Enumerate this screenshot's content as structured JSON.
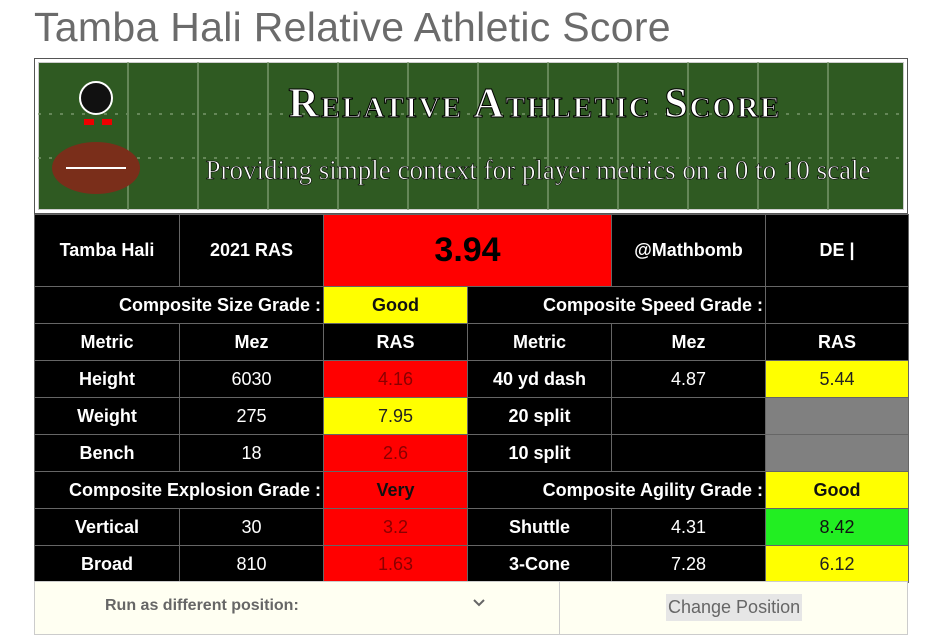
{
  "title": "Tamba Hali Relative Athletic Score",
  "banner": {
    "heading": "Relative Athletic Score",
    "subtitle": "Providing simple context for player metrics on a 0 to 10 scale"
  },
  "table": {
    "header": [
      "Tamba Hali",
      "2021 RAS",
      3.94,
      "@Mathbomb",
      "DE |"
    ],
    "size_grade": {
      "label": "Composite Size Grade :",
      "value": "Good"
    },
    "speed_grade": {
      "label": "Composite Speed Grade :"
    },
    "columns": [
      "Metric",
      "Mez",
      "RAS",
      "Metric",
      "Mez",
      "RAS"
    ],
    "size_rows": [
      [
        "Height",
        6030,
        4.16
      ],
      [
        "Weight",
        275,
        7.95
      ],
      [
        "Bench",
        18,
        2.6
      ]
    ],
    "speed_rows": [
      [
        "40 yd dash",
        4.87,
        5.44
      ],
      [
        "20 split"
      ],
      [
        "10 split"
      ]
    ],
    "explosion_grade": {
      "label": "Composite Explosion Grade :",
      "value": "Very"
    },
    "agility_grade": {
      "label": "Composite Agility Grade :",
      "value": "Good"
    },
    "explosion_rows": [
      [
        "Vertical",
        30,
        3.2
      ],
      [
        "Broad",
        810,
        1.63
      ]
    ],
    "agility_rows": [
      [
        "Shuttle",
        4.31,
        8.42
      ],
      [
        "3-Cone",
        7.28,
        6.12
      ]
    ]
  },
  "form": {
    "label": "Run as different position:",
    "button": "Change Position"
  }
}
